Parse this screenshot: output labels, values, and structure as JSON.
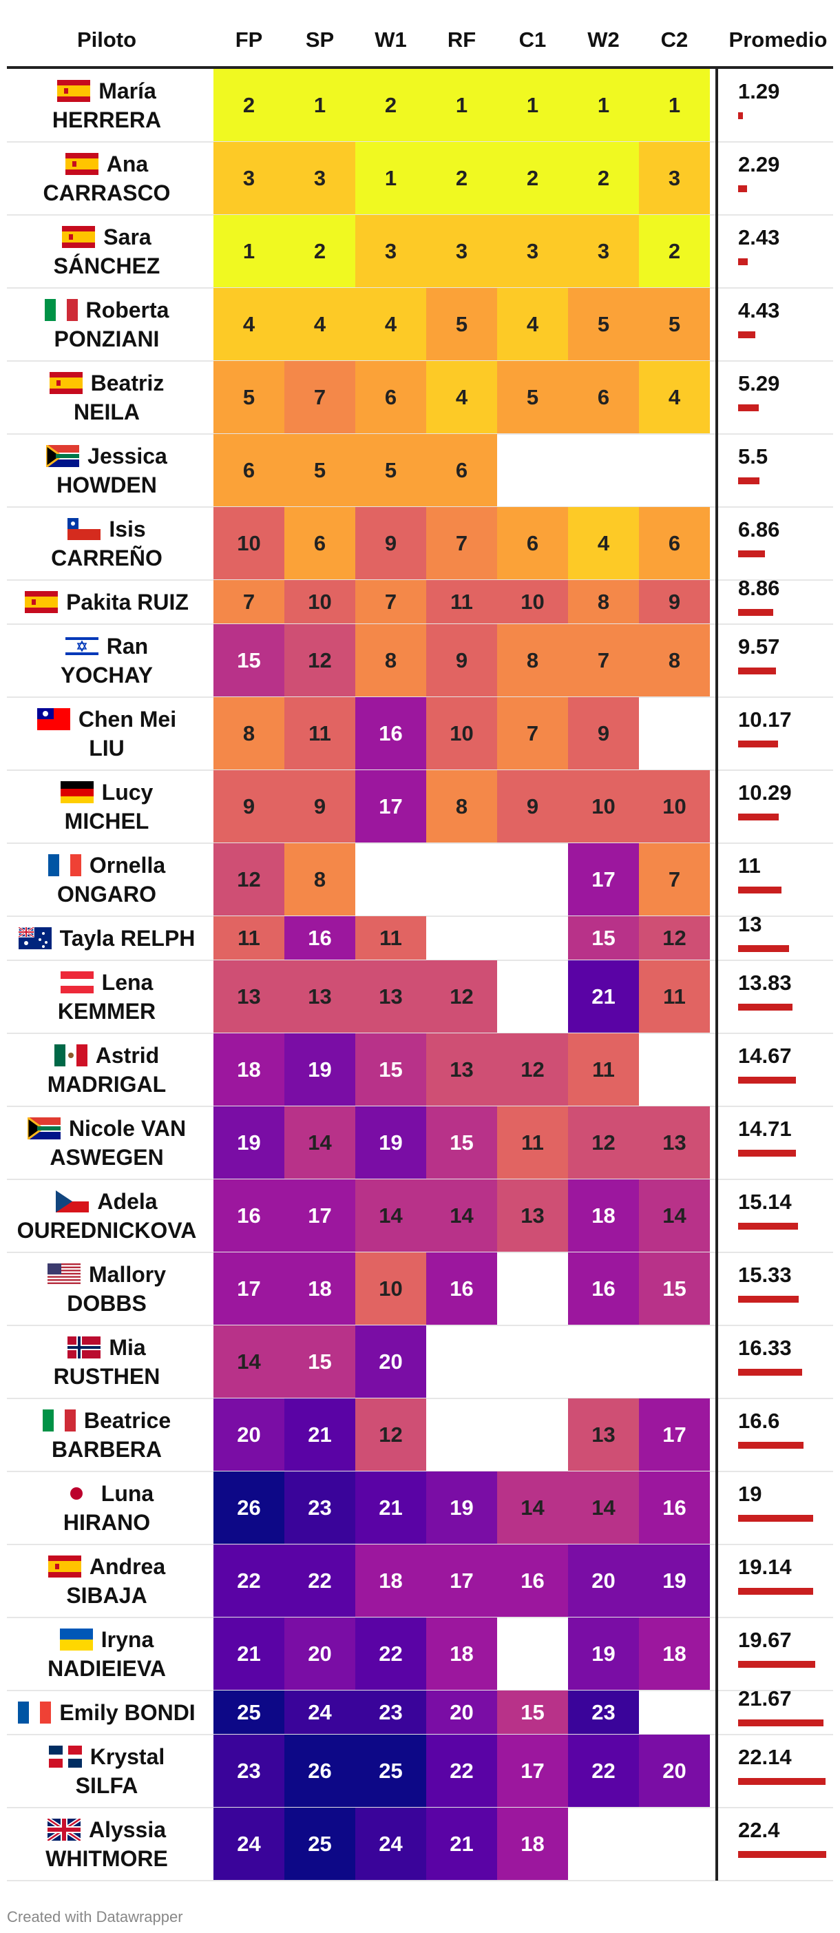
{
  "chart_data": {
    "type": "table",
    "columns": [
      "Piloto",
      "FP",
      "SP",
      "W1",
      "RF",
      "C1",
      "W2",
      "C2",
      "Promedio"
    ],
    "avg_max": 22.4,
    "rows": [
      {
        "first": "María",
        "last": "HERRERA",
        "flag": "es",
        "values": [
          2,
          1,
          2,
          1,
          1,
          1,
          1
        ],
        "avg": "1.29"
      },
      {
        "first": "Ana",
        "last": "CARRASCO",
        "flag": "es",
        "values": [
          3,
          3,
          1,
          2,
          2,
          2,
          3
        ],
        "avg": "2.29"
      },
      {
        "first": "Sara",
        "last": "SÁNCHEZ",
        "flag": "es",
        "values": [
          1,
          2,
          3,
          3,
          3,
          3,
          2
        ],
        "avg": "2.43"
      },
      {
        "first": "Roberta",
        "last": "PONZIANI",
        "flag": "it",
        "values": [
          4,
          4,
          4,
          5,
          4,
          5,
          5
        ],
        "avg": "4.43"
      },
      {
        "first": "Beatriz",
        "last": "NEILA",
        "flag": "es",
        "values": [
          5,
          7,
          6,
          4,
          5,
          6,
          4
        ],
        "avg": "5.29"
      },
      {
        "first": "Jessica",
        "last": "HOWDEN",
        "flag": "za",
        "values": [
          6,
          5,
          5,
          6,
          null,
          null,
          null
        ],
        "avg": "5.5"
      },
      {
        "first": "Isis",
        "last": "CARREÑO",
        "flag": "cl",
        "values": [
          10,
          6,
          9,
          7,
          6,
          4,
          6
        ],
        "avg": "6.86"
      },
      {
        "first": "Pakita RUIZ",
        "last": "",
        "flag": "es",
        "values": [
          7,
          10,
          7,
          11,
          10,
          8,
          9
        ],
        "avg": "8.86"
      },
      {
        "first": "Ran",
        "last": "YOCHAY",
        "flag": "il",
        "values": [
          15,
          12,
          8,
          9,
          8,
          7,
          8
        ],
        "avg": "9.57"
      },
      {
        "first": "Chen Mei",
        "last": "LIU",
        "flag": "tw",
        "values": [
          8,
          11,
          16,
          10,
          7,
          9,
          null
        ],
        "avg": "10.17"
      },
      {
        "first": "Lucy",
        "last": "MICHEL",
        "flag": "de",
        "values": [
          9,
          9,
          17,
          8,
          9,
          10,
          10
        ],
        "avg": "10.29"
      },
      {
        "first": "Ornella",
        "last": "ONGARO",
        "flag": "fr",
        "values": [
          12,
          8,
          null,
          null,
          null,
          17,
          7
        ],
        "avg": "11"
      },
      {
        "first": "Tayla RELPH",
        "last": "",
        "flag": "au",
        "values": [
          11,
          16,
          11,
          null,
          null,
          15,
          12
        ],
        "avg": "13"
      },
      {
        "first": "Lena",
        "last": "KEMMER",
        "flag": "at",
        "values": [
          13,
          13,
          13,
          12,
          null,
          21,
          11
        ],
        "avg": "13.83"
      },
      {
        "first": "Astrid",
        "last": "MADRIGAL",
        "flag": "mx",
        "values": [
          18,
          19,
          15,
          13,
          12,
          11,
          null
        ],
        "avg": "14.67"
      },
      {
        "first": "Nicole VAN",
        "last": "ASWEGEN",
        "flag": "za",
        "values": [
          19,
          14,
          19,
          15,
          11,
          12,
          13
        ],
        "avg": "14.71"
      },
      {
        "first": "Adela",
        "last": "OUREDNICKOVA",
        "flag": "cz",
        "values": [
          16,
          17,
          14,
          14,
          13,
          18,
          14
        ],
        "avg": "15.14"
      },
      {
        "first": "Mallory",
        "last": "DOBBS",
        "flag": "us",
        "values": [
          17,
          18,
          10,
          16,
          null,
          16,
          15
        ],
        "avg": "15.33"
      },
      {
        "first": "Mia",
        "last": "RUSTHEN",
        "flag": "no",
        "values": [
          14,
          15,
          20,
          null,
          null,
          null,
          null
        ],
        "avg": "16.33"
      },
      {
        "first": "Beatrice",
        "last": "BARBERA",
        "flag": "it",
        "values": [
          20,
          21,
          12,
          null,
          null,
          13,
          17
        ],
        "avg": "16.6"
      },
      {
        "first": "Luna",
        "last": "HIRANO",
        "flag": "jp",
        "values": [
          26,
          23,
          21,
          19,
          14,
          14,
          16
        ],
        "avg": "19"
      },
      {
        "first": "Andrea",
        "last": "SIBAJA",
        "flag": "es",
        "values": [
          22,
          22,
          18,
          17,
          16,
          20,
          19
        ],
        "avg": "19.14"
      },
      {
        "first": "Iryna",
        "last": "NADIEIEVA",
        "flag": "ua",
        "values": [
          21,
          20,
          22,
          18,
          null,
          19,
          18
        ],
        "avg": "19.67"
      },
      {
        "first": "Emily BONDI",
        "last": "",
        "flag": "fr",
        "values": [
          25,
          24,
          23,
          20,
          15,
          23,
          null
        ],
        "avg": "21.67"
      },
      {
        "first": "Krystal",
        "last": "SILFA",
        "flag": "do",
        "values": [
          23,
          26,
          25,
          22,
          17,
          22,
          20
        ],
        "avg": "22.14"
      },
      {
        "first": "Alyssia",
        "last": "WHITMORE",
        "flag": "gb",
        "values": [
          24,
          25,
          24,
          21,
          18,
          null,
          null
        ],
        "avg": "22.4"
      }
    ]
  },
  "footer": "Created with Datawrapper",
  "colors": {
    "scale": [
      "#f0f921",
      "#fdca26",
      "#fba238",
      "#f48849",
      "#e16462",
      "#cf4f74",
      "#b83289",
      "#9c179e",
      "#7a0da5",
      "#5a03a5",
      "#3a049a",
      "#0d0887"
    ],
    "bar": "#c91f1f"
  }
}
